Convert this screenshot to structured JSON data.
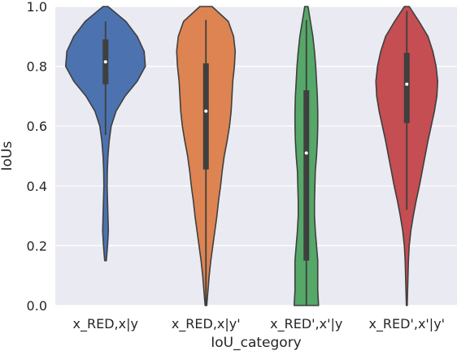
{
  "chart_data": {
    "type": "violin",
    "xlabel": "IoU_category",
    "ylabel": "IoUs",
    "ylim": [
      0,
      1
    ],
    "yticks": [
      "0.0",
      "0.2",
      "0.4",
      "0.6",
      "0.8",
      "1.0"
    ],
    "grid": true,
    "categories": [
      "x_RED,x|y",
      "x_RED,x|y'",
      "x_RED',x'|y",
      "x_RED',x'|y'"
    ],
    "series": [
      {
        "category": "x_RED,x|y",
        "color": "#4c72b0",
        "whisker": [
          0.57,
          0.95
        ],
        "q1": 0.74,
        "median": 0.815,
        "q3": 0.89,
        "density": [
          [
            0.15,
            0.02
          ],
          [
            0.2,
            0.05
          ],
          [
            0.25,
            0.07
          ],
          [
            0.3,
            0.06
          ],
          [
            0.35,
            0.05
          ],
          [
            0.4,
            0.04
          ],
          [
            0.45,
            0.045
          ],
          [
            0.5,
            0.06
          ],
          [
            0.55,
            0.09
          ],
          [
            0.6,
            0.14
          ],
          [
            0.65,
            0.26
          ],
          [
            0.7,
            0.48
          ],
          [
            0.75,
            0.78
          ],
          [
            0.8,
            0.98
          ],
          [
            0.85,
            0.95
          ],
          [
            0.9,
            0.78
          ],
          [
            0.95,
            0.5
          ],
          [
            1.0,
            0.06
          ]
        ]
      },
      {
        "category": "x_RED,x|y'",
        "color": "#dd8452",
        "whisker": [
          0.0,
          0.955
        ],
        "q1": 0.455,
        "median": 0.65,
        "q3": 0.81,
        "density": [
          [
            0.0,
            0.02
          ],
          [
            0.05,
            0.05
          ],
          [
            0.1,
            0.08
          ],
          [
            0.15,
            0.12
          ],
          [
            0.2,
            0.17
          ],
          [
            0.25,
            0.22
          ],
          [
            0.3,
            0.27
          ],
          [
            0.35,
            0.31
          ],
          [
            0.4,
            0.36
          ],
          [
            0.45,
            0.4
          ],
          [
            0.5,
            0.45
          ],
          [
            0.55,
            0.52
          ],
          [
            0.6,
            0.58
          ],
          [
            0.65,
            0.62
          ],
          [
            0.7,
            0.64
          ],
          [
            0.75,
            0.66
          ],
          [
            0.8,
            0.7
          ],
          [
            0.85,
            0.72
          ],
          [
            0.9,
            0.68
          ],
          [
            0.95,
            0.55
          ],
          [
            1.0,
            0.15
          ]
        ]
      },
      {
        "category": "x_RED',x'|y",
        "color": "#55a868",
        "whisker": [
          0.0,
          0.955
        ],
        "q1": 0.15,
        "median": 0.51,
        "q3": 0.72,
        "density": [
          [
            0.0,
            0.3
          ],
          [
            0.05,
            0.28
          ],
          [
            0.1,
            0.28
          ],
          [
            0.15,
            0.28
          ],
          [
            0.2,
            0.25
          ],
          [
            0.25,
            0.22
          ],
          [
            0.3,
            0.2
          ],
          [
            0.35,
            0.2
          ],
          [
            0.4,
            0.21
          ],
          [
            0.45,
            0.22
          ],
          [
            0.5,
            0.25
          ],
          [
            0.55,
            0.27
          ],
          [
            0.6,
            0.28
          ],
          [
            0.65,
            0.28
          ],
          [
            0.7,
            0.27
          ],
          [
            0.75,
            0.25
          ],
          [
            0.8,
            0.23
          ],
          [
            0.85,
            0.2
          ],
          [
            0.9,
            0.16
          ],
          [
            0.95,
            0.1
          ],
          [
            1.0,
            0.04
          ]
        ]
      },
      {
        "category": "x_RED',x'|y'",
        "color": "#c44e52",
        "whisker": [
          0.32,
          0.985
        ],
        "q1": 0.61,
        "median": 0.74,
        "q3": 0.845,
        "density": [
          [
            0.0,
            0.01
          ],
          [
            0.05,
            0.02
          ],
          [
            0.1,
            0.03
          ],
          [
            0.15,
            0.04
          ],
          [
            0.2,
            0.06
          ],
          [
            0.25,
            0.1
          ],
          [
            0.3,
            0.16
          ],
          [
            0.35,
            0.23
          ],
          [
            0.4,
            0.31
          ],
          [
            0.45,
            0.38
          ],
          [
            0.5,
            0.45
          ],
          [
            0.55,
            0.52
          ],
          [
            0.6,
            0.6
          ],
          [
            0.65,
            0.68
          ],
          [
            0.7,
            0.74
          ],
          [
            0.75,
            0.76
          ],
          [
            0.8,
            0.72
          ],
          [
            0.85,
            0.64
          ],
          [
            0.9,
            0.52
          ],
          [
            0.95,
            0.3
          ],
          [
            1.0,
            0.06
          ]
        ]
      }
    ]
  }
}
